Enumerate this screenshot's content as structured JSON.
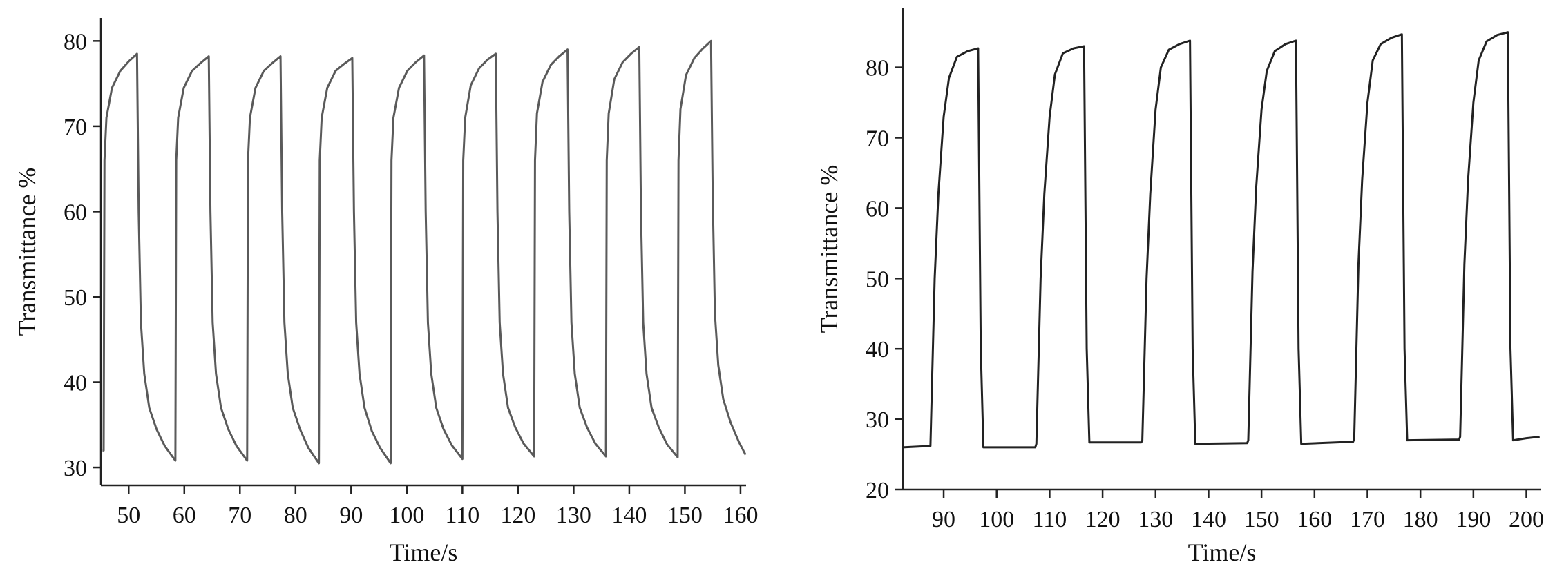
{
  "chart_data": [
    {
      "type": "line",
      "x_label": "Time/s",
      "y_label": "Transmittance %",
      "color": "#5a5a5a",
      "xlim": [
        45,
        161
      ],
      "ylim": [
        27.9,
        82.7
      ],
      "xticks": [
        50,
        60,
        70,
        80,
        90,
        100,
        110,
        120,
        130,
        140,
        150,
        160
      ],
      "yticks": [
        30,
        40,
        50,
        60,
        70,
        80
      ],
      "x": [
        45.3,
        45.5,
        45.65,
        46,
        47,
        48.5,
        50,
        51.5,
        51.8,
        52.2,
        52.8,
        53.7,
        55,
        56.5,
        58.4,
        58.55,
        58.9,
        59.9,
        61.4,
        62.9,
        64.4,
        64.7,
        65.1,
        65.7,
        66.6,
        67.9,
        69.4,
        71.3,
        71.45,
        71.8,
        72.8,
        74.3,
        75.8,
        77.3,
        77.6,
        78,
        78.6,
        79.5,
        80.8,
        82.3,
        84.2,
        84.35,
        84.7,
        85.7,
        87.2,
        88.7,
        90.2,
        90.5,
        90.9,
        91.5,
        92.4,
        93.7,
        95.2,
        97.1,
        97.25,
        97.6,
        98.6,
        100.1,
        101.6,
        103.1,
        103.4,
        103.8,
        104.4,
        105.3,
        106.6,
        108.1,
        110,
        110.15,
        110.5,
        111.5,
        113,
        114.5,
        116,
        116.3,
        116.7,
        117.3,
        118.2,
        119.5,
        121,
        122.9,
        123.05,
        123.4,
        124.4,
        125.9,
        127.4,
        128.9,
        129.2,
        129.6,
        130.2,
        131.1,
        132.4,
        133.9,
        135.8,
        135.95,
        136.3,
        137.3,
        138.8,
        140.3,
        141.8,
        142.1,
        142.5,
        143.1,
        144,
        145.3,
        146.8,
        148.7,
        148.85,
        149.2,
        150.2,
        151.7,
        153.2,
        154.7,
        155,
        155.4,
        156,
        156.9,
        158.2,
        159.7,
        160.9
      ],
      "values": [
        32,
        32,
        66,
        71,
        74.5,
        76.5,
        77.6,
        78.5,
        60,
        47,
        41,
        37,
        34.5,
        32.5,
        30.8,
        66,
        71,
        74.5,
        76.5,
        77.4,
        78.2,
        60,
        47,
        41,
        37,
        34.5,
        32.5,
        30.8,
        66,
        71,
        74.5,
        76.5,
        77.4,
        78.2,
        60,
        47,
        41,
        37,
        34.5,
        32.3,
        30.5,
        66,
        71,
        74.5,
        76.5,
        77.3,
        78,
        60,
        47,
        41,
        37,
        34.3,
        32.3,
        30.5,
        66,
        71,
        74.5,
        76.5,
        77.5,
        78.3,
        60,
        47,
        41,
        37,
        34.5,
        32.6,
        31,
        66,
        71,
        74.8,
        76.8,
        77.8,
        78.5,
        60,
        47,
        41,
        37,
        34.7,
        32.8,
        31.3,
        66,
        71.5,
        75.2,
        77.2,
        78.2,
        79,
        60,
        47,
        41,
        37,
        34.7,
        32.8,
        31.3,
        66,
        71.5,
        75.5,
        77.5,
        78.5,
        79.3,
        60,
        47,
        41,
        37,
        34.7,
        32.7,
        31.2,
        66,
        72,
        76,
        78,
        79.1,
        80,
        62,
        48,
        42,
        38,
        35.3,
        33,
        31.5
      ]
    },
    {
      "type": "line",
      "x_label": "Time/s",
      "y_label": "Transmittance %",
      "color": "#222222",
      "xlim": [
        82.3,
        202.8
      ],
      "ylim": [
        20,
        88.4
      ],
      "xticks": [
        90,
        100,
        110,
        120,
        130,
        140,
        150,
        160,
        170,
        180,
        190,
        200
      ],
      "yticks": [
        20,
        30,
        40,
        50,
        60,
        70,
        80
      ],
      "x": [
        82.3,
        87.5,
        88.3,
        89,
        90,
        91,
        92.5,
        94.5,
        96.5,
        97,
        97.5,
        107.3,
        107.5,
        108.3,
        109,
        110,
        111,
        112.5,
        114.5,
        116.5,
        117,
        117.5,
        127.3,
        127.5,
        128.3,
        129,
        130,
        131,
        132.5,
        134.5,
        136.5,
        137,
        137.5,
        147.3,
        147.5,
        148.3,
        149,
        150,
        151,
        152.5,
        154.5,
        156.5,
        157,
        157.5,
        167.3,
        167.5,
        168.3,
        169,
        170,
        171,
        172.5,
        174.5,
        176.5,
        177,
        177.5,
        187.3,
        187.5,
        188.3,
        189,
        190,
        191,
        192.5,
        194.5,
        196.5,
        197,
        197.5,
        200,
        202.5
      ],
      "values": [
        26,
        26.2,
        50,
        62,
        73,
        78.5,
        81.5,
        82.3,
        82.7,
        40,
        26,
        26,
        26.5,
        50,
        62,
        73,
        79,
        82,
        82.7,
        83,
        40,
        26.7,
        26.7,
        27,
        50,
        62,
        74,
        80,
        82.5,
        83.3,
        83.8,
        40,
        26.5,
        26.6,
        27,
        51,
        63,
        74,
        79.5,
        82.3,
        83.3,
        83.8,
        40,
        26.5,
        26.8,
        27.2,
        52,
        64,
        75,
        81,
        83.3,
        84.2,
        84.7,
        40,
        27,
        27.1,
        27.5,
        52,
        64,
        75,
        81,
        83.7,
        84.6,
        85,
        40,
        27,
        27.3,
        27.5
      ]
    }
  ]
}
